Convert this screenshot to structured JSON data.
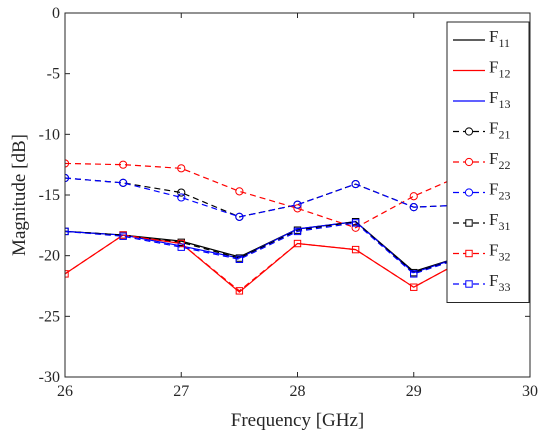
{
  "chart_data": {
    "type": "line",
    "xlabel": "Frequency [GHz]",
    "ylabel": "Magnitude [dB]",
    "xlim": [
      26,
      30
    ],
    "ylim": [
      -30,
      0
    ],
    "x_ticks": [
      "26",
      "27",
      "28",
      "29",
      "30"
    ],
    "y_ticks": [
      "0",
      "-5",
      "-10",
      "-15",
      "-20",
      "-25",
      "-30"
    ],
    "grid": false,
    "legend_position": "top-right",
    "x": [
      26,
      26.5,
      27,
      27.5,
      28,
      28.5,
      29,
      29.5,
      30
    ],
    "series": [
      {
        "name": "F",
        "sub": "11",
        "color": "#000000",
        "dash": "solid",
        "marker": "none",
        "values": [
          -18.0,
          -18.3,
          -18.8,
          -20.1,
          -17.8,
          -17.2,
          -21.3,
          -19.8,
          -18.6
        ]
      },
      {
        "name": "F",
        "sub": "12",
        "color": "#ff0000",
        "dash": "solid",
        "marker": "none",
        "values": [
          -21.5,
          -18.3,
          -19.0,
          -23.0,
          -19.0,
          -19.5,
          -22.6,
          -20.0,
          -19.8
        ]
      },
      {
        "name": "F",
        "sub": "13",
        "color": "#0000ff",
        "dash": "solid",
        "marker": "none",
        "values": [
          -18.0,
          -18.3,
          -19.2,
          -20.2,
          -17.8,
          -17.2,
          -21.4,
          -19.8,
          -18.6
        ]
      },
      {
        "name": "F",
        "sub": "21",
        "color": "#000000",
        "dash": "dashed",
        "marker": "circle",
        "values": [
          -13.6,
          -14.0,
          -14.8,
          -16.8,
          -15.8,
          -14.1,
          -16.0,
          -15.8,
          -15.0
        ]
      },
      {
        "name": "F",
        "sub": "22",
        "color": "#ff0000",
        "dash": "dashed",
        "marker": "circle",
        "values": [
          -12.4,
          -12.5,
          -12.8,
          -14.7,
          -16.1,
          -17.7,
          -15.1,
          -13.0,
          -16.1
        ]
      },
      {
        "name": "F",
        "sub": "23",
        "color": "#0000ff",
        "dash": "dashed",
        "marker": "circle",
        "values": [
          -13.6,
          -14.0,
          -15.2,
          -16.8,
          -15.8,
          -14.1,
          -16.0,
          -15.8,
          -15.0
        ]
      },
      {
        "name": "F",
        "sub": "31",
        "color": "#000000",
        "dash": "dashed",
        "marker": "square",
        "values": [
          -18.0,
          -18.3,
          -18.9,
          -20.2,
          -17.9,
          -17.2,
          -21.4,
          -19.9,
          -18.6
        ]
      },
      {
        "name": "F",
        "sub": "32",
        "color": "#ff0000",
        "dash": "dashed",
        "marker": "square",
        "values": [
          -21.5,
          -18.3,
          -19.0,
          -22.9,
          -19.0,
          -19.5,
          -22.6,
          -20.0,
          -19.8
        ]
      },
      {
        "name": "F",
        "sub": "33",
        "color": "#0000ff",
        "dash": "dashed",
        "marker": "square",
        "values": [
          -18.0,
          -18.4,
          -19.3,
          -20.3,
          -18.0,
          -17.3,
          -21.5,
          -19.9,
          -18.6
        ]
      }
    ]
  }
}
